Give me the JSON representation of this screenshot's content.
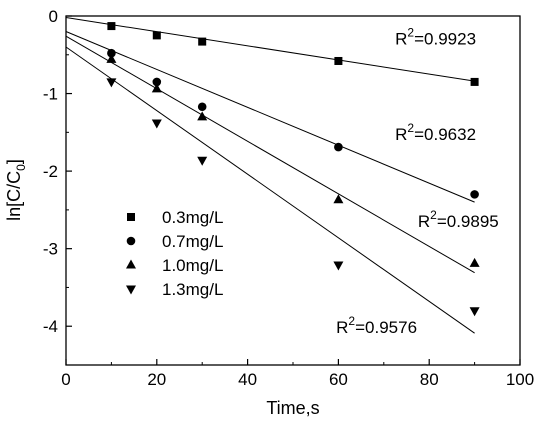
{
  "chart_data": {
    "type": "scatter",
    "xlabel": "Time,s",
    "ylabel": "ln[C/C0]",
    "ylabel_main": "ln[C/C",
    "ylabel_sub": "0",
    "ylabel_end": "]",
    "xlim": [
      0,
      100
    ],
    "ylim": [
      -4.5,
      0
    ],
    "x_ticks": [
      0,
      20,
      40,
      60,
      80,
      100
    ],
    "y_ticks": [
      0,
      -1,
      -2,
      -3,
      -4
    ],
    "grid": false,
    "legend_position": "lower-left",
    "series": [
      {
        "name": "0.3mg/L",
        "marker": "square",
        "x": [
          10,
          20,
          30,
          60,
          90
        ],
        "y": [
          -0.13,
          -0.25,
          -0.33,
          -0.58,
          -0.85
        ],
        "fit": {
          "x": [
            0,
            90
          ],
          "y": [
            -0.02,
            -0.84
          ]
        },
        "r2_label": "R",
        "r2_sup": "2",
        "r2_value": "=0.9923",
        "r2_at": {
          "x": 72.5,
          "y": -0.37
        }
      },
      {
        "name": "0.7mg/L",
        "marker": "circle",
        "x": [
          10,
          20,
          30,
          60,
          90
        ],
        "y": [
          -0.48,
          -0.85,
          -1.17,
          -1.69,
          -2.3
        ],
        "fit": {
          "x": [
            0,
            90
          ],
          "y": [
            -0.2,
            -2.4
          ]
        },
        "r2_label": "R",
        "r2_sup": "2",
        "r2_value": "=0.9632",
        "r2_at": {
          "x": 72.5,
          "y": -1.6
        }
      },
      {
        "name": "1.0mg/L",
        "marker": "triangle-up",
        "x": [
          10,
          20,
          30,
          60,
          90
        ],
        "y": [
          -0.56,
          -0.94,
          -1.3,
          -2.37,
          -3.19
        ],
        "fit": {
          "x": [
            0,
            90
          ],
          "y": [
            -0.26,
            -3.31
          ]
        },
        "r2_label": "R",
        "r2_sup": "2",
        "r2_value": "=0.9895",
        "r2_at": {
          "x": 77.5,
          "y": -2.72
        }
      },
      {
        "name": "1.3mg/L",
        "marker": "triangle-down",
        "x": [
          10,
          20,
          30,
          60,
          90
        ],
        "y": [
          -0.85,
          -1.38,
          -1.86,
          -3.21,
          -3.8
        ],
        "fit": {
          "x": [
            0,
            90
          ],
          "y": [
            -0.4,
            -4.09
          ]
        },
        "r2_label": "R",
        "r2_sup": "2",
        "r2_value": "=0.9576",
        "r2_at": {
          "x": 59.5,
          "y": -4.09
        }
      }
    ]
  }
}
